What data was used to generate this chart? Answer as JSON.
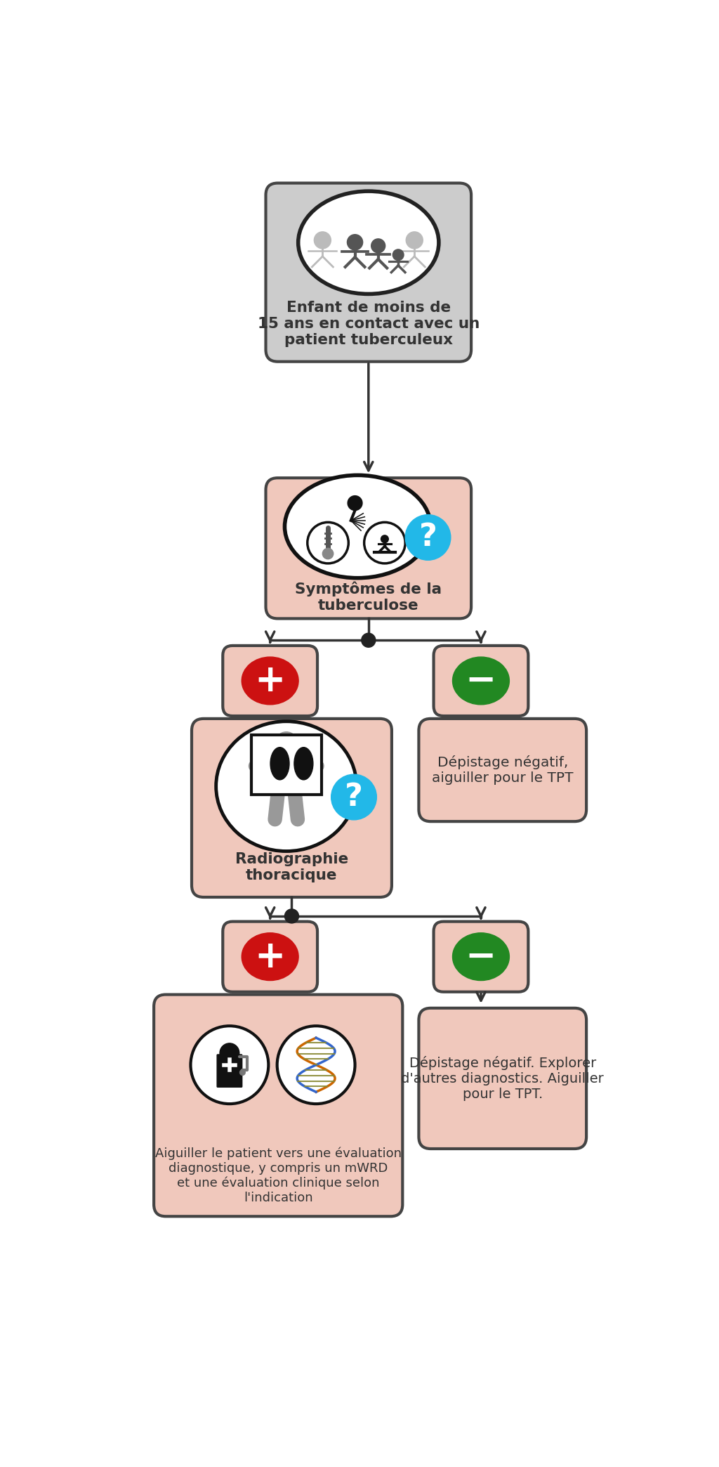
{
  "bg_color": "#ffffff",
  "box_salmon": "#f0c8bc",
  "box_gray": "#cccccc",
  "box_border": "#444444",
  "arrow_color": "#333333",
  "red_color": "#cc1111",
  "green_color": "#228822",
  "blue_color": "#22b8e8",
  "text_dark": "#333333",
  "node1_text": "Enfant de moins de\n15 ans en contact avec un\npatient tuberculeux",
  "node2_text": "Symptômes de la\ntuberculose",
  "node3r_text": "Dépistage négatif,\naiguiller pour le TPT",
  "node4_text": "Radiographie\nthoracique",
  "node5l_text": "Aiguiller le patient vers une évaluation\ndiagnostique, y compris un mWRD\net une évaluation clinique selon\nl'indication",
  "node5r_text": "Dépistage négatif. Explorer\nd'autres diagnostics. Aiguiller\npour le TPT."
}
